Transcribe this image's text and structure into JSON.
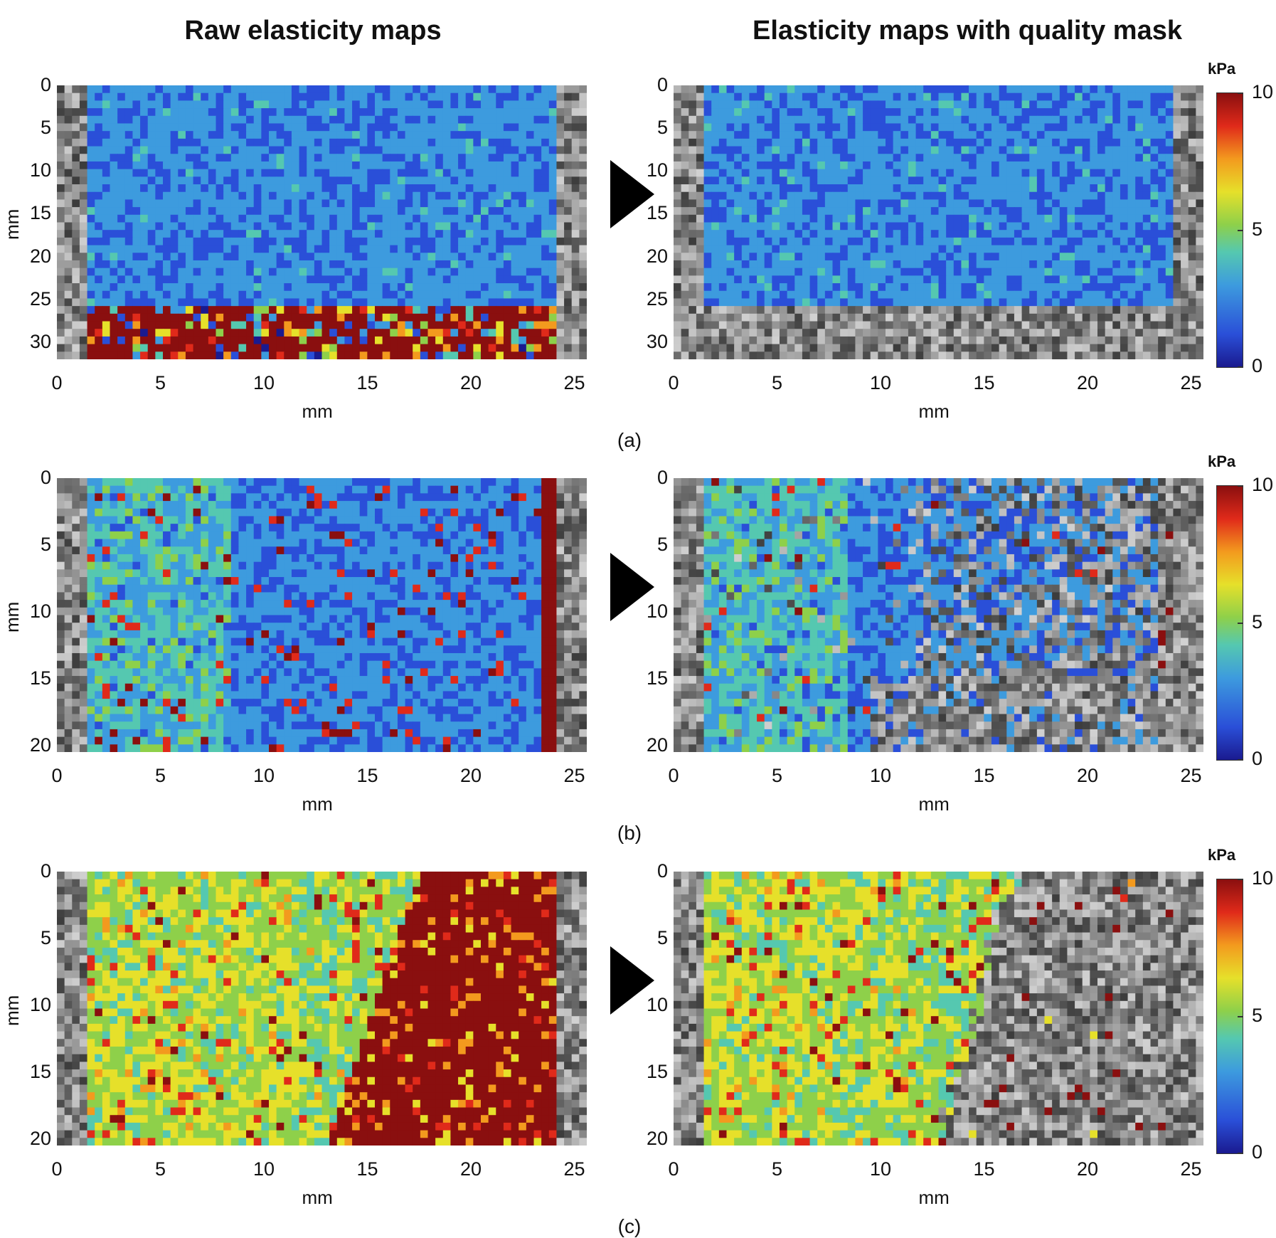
{
  "titles": {
    "left": "Raw elasticity maps",
    "right": "Elasticity maps with quality mask"
  },
  "axes": {
    "xlabel": "mm",
    "ylabel": "mm",
    "xticks": [
      "0",
      "5",
      "10",
      "15",
      "20",
      "25"
    ],
    "yticks_a": [
      "0",
      "5",
      "10",
      "15",
      "20",
      "25",
      "30"
    ],
    "yticks_bc": [
      "0",
      "5",
      "10",
      "15",
      "20"
    ]
  },
  "colorbar": {
    "unit": "kPa",
    "ticks": [
      "10",
      "5",
      "0"
    ],
    "range": [
      0,
      10
    ],
    "colors": [
      "#1a1a8f",
      "#2a4fd8",
      "#3d9bde",
      "#55c8b0",
      "#8ed04a",
      "#e6e02a",
      "#f39a1e",
      "#e02a1a",
      "#8a0f0f"
    ]
  },
  "panels": [
    {
      "label": "(a)"
    },
    {
      "label": "(b)"
    },
    {
      "label": "(c)"
    }
  ]
}
